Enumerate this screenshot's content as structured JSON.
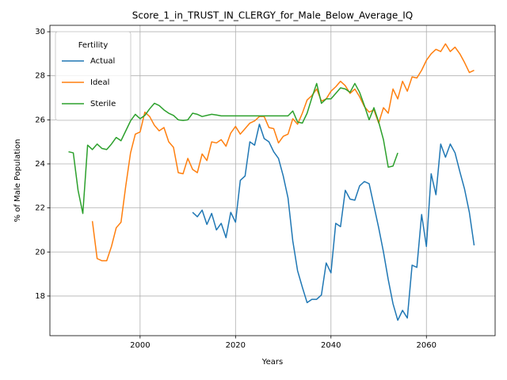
{
  "chart_data": {
    "type": "line",
    "title": "Score_1_in_TRUST_IN_CLERGY_for_Male_Below_Average_IQ",
    "x_label": "Years",
    "y_label": "% of Male Population",
    "legend_title": "Fertility",
    "legend": "upper left",
    "grid": true,
    "x": [
      1985,
      1986,
      1987,
      1988,
      1989,
      1990,
      1991,
      1992,
      1993,
      1994,
      1995,
      1996,
      1997,
      1998,
      1999,
      2000,
      2001,
      2002,
      2003,
      2004,
      2005,
      2006,
      2007,
      2008,
      2009,
      2010,
      2011,
      2012,
      2013,
      2014,
      2015,
      2016,
      2017,
      2018,
      2019,
      2020,
      2021,
      2022,
      2023,
      2024,
      2025,
      2026,
      2027,
      2028,
      2029,
      2030,
      2031,
      2032,
      2033,
      2034,
      2035,
      2036,
      2037,
      2038,
      2039,
      2040,
      2041,
      2042,
      2043,
      2044,
      2045,
      2046,
      2047,
      2048,
      2049,
      2050,
      2051,
      2052,
      2053,
      2054,
      2055,
      2056,
      2057,
      2058,
      2059,
      2060,
      2061,
      2062,
      2063,
      2064,
      2065,
      2066,
      2067,
      2068,
      2069,
      2070
    ],
    "series": [
      {
        "name": "Actual",
        "color": "#1f77b4",
        "values": [
          null,
          null,
          null,
          null,
          null,
          null,
          null,
          null,
          null,
          null,
          null,
          null,
          null,
          null,
          null,
          null,
          null,
          null,
          null,
          null,
          null,
          null,
          null,
          null,
          null,
          null,
          21.8,
          21.6,
          21.9,
          21.25,
          21.75,
          21.0,
          21.3,
          20.65,
          21.8,
          21.35,
          23.25,
          23.45,
          25.0,
          24.85,
          25.8,
          25.15,
          25.0,
          24.55,
          24.25,
          23.45,
          22.45,
          20.5,
          19.15,
          18.4,
          17.7,
          17.85,
          17.85,
          18.05,
          19.5,
          19.05,
          21.3,
          21.15,
          22.8,
          22.4,
          22.35,
          23.0,
          23.2,
          23.1,
          22.1,
          21.1,
          20.0,
          18.75,
          17.65,
          16.9,
          17.35,
          17.0,
          19.4,
          19.3,
          21.7,
          20.25,
          23.55,
          22.6,
          24.9,
          24.3,
          24.9,
          24.5,
          23.65,
          22.85,
          21.8,
          20.3
        ]
      },
      {
        "name": "Ideal",
        "color": "#ff7f0e",
        "values": [
          null,
          null,
          null,
          null,
          null,
          21.4,
          19.7,
          19.6,
          19.6,
          20.25,
          21.1,
          21.35,
          23.0,
          24.5,
          25.35,
          25.45,
          26.35,
          26.15,
          25.75,
          25.5,
          25.65,
          25.0,
          24.75,
          23.6,
          23.55,
          24.25,
          23.75,
          23.6,
          24.45,
          24.15,
          25.0,
          24.95,
          25.1,
          24.8,
          25.4,
          25.7,
          25.35,
          25.6,
          25.85,
          25.95,
          26.15,
          26.15,
          25.65,
          25.6,
          24.95,
          25.25,
          25.35,
          26.05,
          25.8,
          26.3,
          26.9,
          27.1,
          27.4,
          26.85,
          26.95,
          27.3,
          27.5,
          27.75,
          27.55,
          27.2,
          27.4,
          27.05,
          26.6,
          26.35,
          26.45,
          25.85,
          26.55,
          26.3,
          27.4,
          26.95,
          27.75,
          27.3,
          27.95,
          27.9,
          28.25,
          28.7,
          29.0,
          29.2,
          29.1,
          29.45,
          29.1,
          29.3,
          29.0,
          28.6,
          28.15,
          28.25
        ]
      },
      {
        "name": "Sterile",
        "color": "#2ca02c",
        "values": [
          24.55,
          24.5,
          22.8,
          21.75,
          24.85,
          24.65,
          24.9,
          24.7,
          24.65,
          24.9,
          25.2,
          25.05,
          25.5,
          25.95,
          26.25,
          26.05,
          26.2,
          26.5,
          26.75,
          26.65,
          26.45,
          26.3,
          26.2,
          26.0,
          25.97,
          26.0,
          26.3,
          26.25,
          26.15,
          26.2,
          26.25,
          26.22,
          26.18,
          26.18,
          26.18,
          26.18,
          26.18,
          26.18,
          26.18,
          26.18,
          26.18,
          26.18,
          26.18,
          26.18,
          26.18,
          26.18,
          26.18,
          26.4,
          25.9,
          25.85,
          26.3,
          27.0,
          27.65,
          26.75,
          26.95,
          26.95,
          27.2,
          27.45,
          27.4,
          27.25,
          27.65,
          27.25,
          26.65,
          26.0,
          26.55,
          25.9,
          25.1,
          23.85,
          23.9,
          24.5,
          null,
          null,
          null,
          null,
          null,
          null,
          null,
          null,
          null,
          null,
          null,
          null,
          null,
          null,
          null,
          null
        ]
      }
    ],
    "xlim": [
      1981.1,
      2074.4
    ],
    "ylim": [
      16.2,
      30.29
    ],
    "xticks": [
      2000,
      2020,
      2040,
      2060
    ],
    "yticks": [
      18,
      20,
      22,
      24,
      26,
      28,
      30
    ]
  }
}
